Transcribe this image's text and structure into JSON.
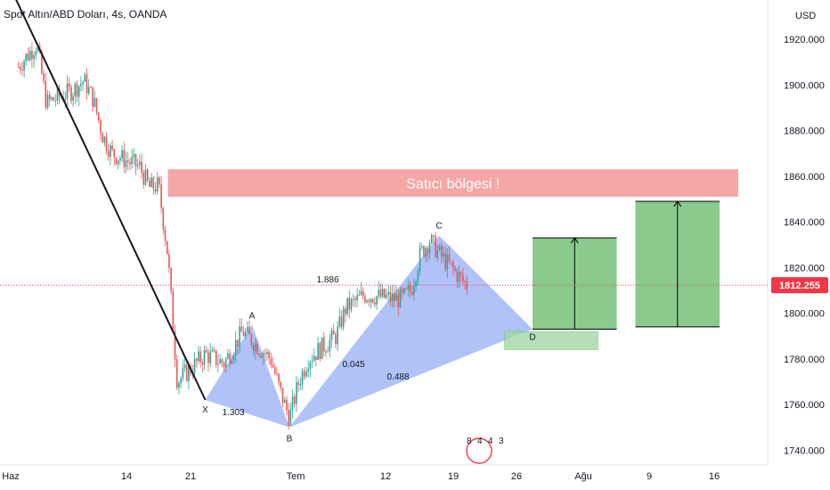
{
  "header": {
    "title": "Spot Altın/ABD Doları, 4s, OANDA"
  },
  "colors": {
    "up": "#26a69a",
    "down": "#ef5350",
    "zone": "#f08a87",
    "pattern": "#8fa8f5",
    "target": "#58b35c",
    "d_zone": "#a5d6a7",
    "price_tag": "#f23645",
    "trend": "#131722"
  },
  "chart_data": {
    "type": "candlestick",
    "currency_label": "USD",
    "x_ticks": [
      "Haz",
      "14",
      "21",
      "Tem",
      "12",
      "19",
      "26",
      "Ağu",
      "9",
      "16"
    ],
    "y_ticks": [
      1740,
      1760,
      1780,
      1800,
      1820,
      1840,
      1860,
      1880,
      1900,
      1920
    ],
    "y_tick_labels": [
      "1740.000",
      "1760.000",
      "1780.000",
      "1800.000",
      "1820.000",
      "1840.000",
      "1860.000",
      "1880.000",
      "1900.000",
      "1920.000"
    ],
    "ylim": [
      1731,
      1940
    ],
    "last_price": 1812.255,
    "last_price_label": "1812.255",
    "price_path": [
      [
        "2021-06-01",
        1908
      ],
      [
        "2021-06-03",
        1918
      ],
      [
        "2021-06-04",
        1892
      ],
      [
        "2021-06-07",
        1898
      ],
      [
        "2021-06-08",
        1902
      ],
      [
        "2021-06-09",
        1894
      ],
      [
        "2021-06-10",
        1878
      ],
      [
        "2021-06-11",
        1870
      ],
      [
        "2021-06-14",
        1864
      ],
      [
        "2021-06-15",
        1855
      ],
      [
        "2021-06-16",
        1856
      ],
      [
        "2021-06-17",
        1825
      ],
      [
        "2021-06-18",
        1770
      ],
      [
        "2021-06-21",
        1782
      ],
      [
        "2021-06-23",
        1778
      ],
      [
        "2021-06-25",
        1792
      ],
      [
        "2021-06-28",
        1780
      ],
      [
        "2021-06-29",
        1766
      ],
      [
        "2021-06-30",
        1754
      ],
      [
        "2021-07-01",
        1770
      ],
      [
        "2021-07-02",
        1780
      ],
      [
        "2021-07-05",
        1790
      ],
      [
        "2021-07-06",
        1802
      ],
      [
        "2021-07-08",
        1808
      ],
      [
        "2021-07-12",
        1806
      ],
      [
        "2021-07-13",
        1810
      ],
      [
        "2021-07-14",
        1826
      ],
      [
        "2021-07-15",
        1832
      ],
      [
        "2021-07-16",
        1826
      ],
      [
        "2021-07-19",
        1812
      ]
    ],
    "zones": [
      {
        "label": "Satıcı bölgesi !",
        "y_top": 1863,
        "y_bottom": 1851,
        "x_start": "2021-06-17",
        "x_end": "2021-08-17"
      }
    ],
    "pattern_points": [
      {
        "label": "X",
        "date": "2021-06-21",
        "price": 1762
      },
      {
        "label": "A",
        "date": "2021-06-26",
        "price": 1795
      },
      {
        "label": "B",
        "date": "2021-06-30",
        "price": 1750
      },
      {
        "label": "C",
        "date": "2021-07-16",
        "price": 1834
      },
      {
        "label": "D",
        "date": "2021-07-26",
        "price": 1793
      }
    ],
    "ratios": [
      {
        "label": "1.303"
      },
      {
        "label": "0.045"
      },
      {
        "label": "0.488"
      },
      {
        "label": "1.886"
      }
    ],
    "targets": [
      {
        "x_start": "2021-07-26",
        "x_end": "2021-08-04",
        "y_top": 1833,
        "y_bottom": 1793
      },
      {
        "x_start": "2021-08-06",
        "x_end": "2021-08-15",
        "y_top": 1849,
        "y_bottom": 1794
      }
    ],
    "d_zone": {
      "label": "D",
      "x_start": "2021-07-23",
      "x_end": "2021-08-02",
      "y_top": 1792,
      "y_bottom": 1784
    },
    "trendline": {
      "from": [
        "2021-05-31",
        1944
      ],
      "to": [
        "2021-06-21",
        1762
      ]
    },
    "bottom_badge": [
      "8",
      "4",
      "4",
      "3"
    ]
  }
}
